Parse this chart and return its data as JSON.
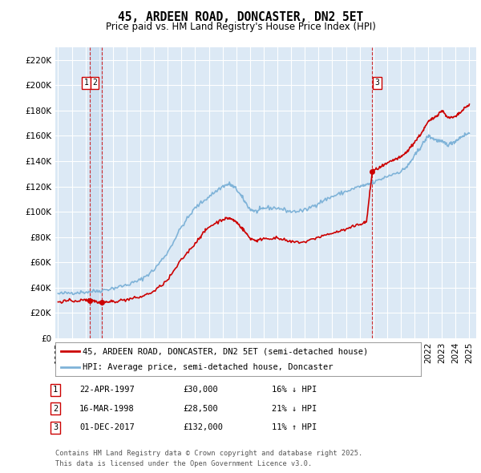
{
  "title": "45, ARDEEN ROAD, DONCASTER, DN2 5ET",
  "subtitle": "Price paid vs. HM Land Registry's House Price Index (HPI)",
  "ylabel_ticks": [
    "£0",
    "£20K",
    "£40K",
    "£60K",
    "£80K",
    "£100K",
    "£120K",
    "£140K",
    "£160K",
    "£180K",
    "£200K",
    "£220K"
  ],
  "ytick_values": [
    0,
    20000,
    40000,
    60000,
    80000,
    100000,
    120000,
    140000,
    160000,
    180000,
    200000,
    220000
  ],
  "ylim": [
    0,
    230000
  ],
  "xlim_start": 1994.8,
  "xlim_end": 2025.5,
  "bg_color": "#dce9f5",
  "grid_color": "#ffffff",
  "hpi_color": "#7fb3d8",
  "price_color": "#cc0000",
  "transactions": [
    {
      "id": 1,
      "date_num": 1997.31,
      "price": 30000,
      "pct": "16% ↓ HPI",
      "date_str": "22-APR-1997",
      "price_str": "£30,000"
    },
    {
      "id": 2,
      "date_num": 1998.21,
      "price": 28500,
      "pct": "21% ↓ HPI",
      "date_str": "16-MAR-1998",
      "price_str": "£28,500"
    },
    {
      "id": 3,
      "date_num": 2017.92,
      "price": 132000,
      "pct": "11% ↑ HPI",
      "date_str": "01-DEC-2017",
      "price_str": "£132,000"
    }
  ],
  "legend_label_red": "45, ARDEEN ROAD, DONCASTER, DN2 5ET (semi-detached house)",
  "legend_label_blue": "HPI: Average price, semi-detached house, Doncaster",
  "footnote": "Contains HM Land Registry data © Crown copyright and database right 2025.\nThis data is licensed under the Open Government Licence v3.0."
}
